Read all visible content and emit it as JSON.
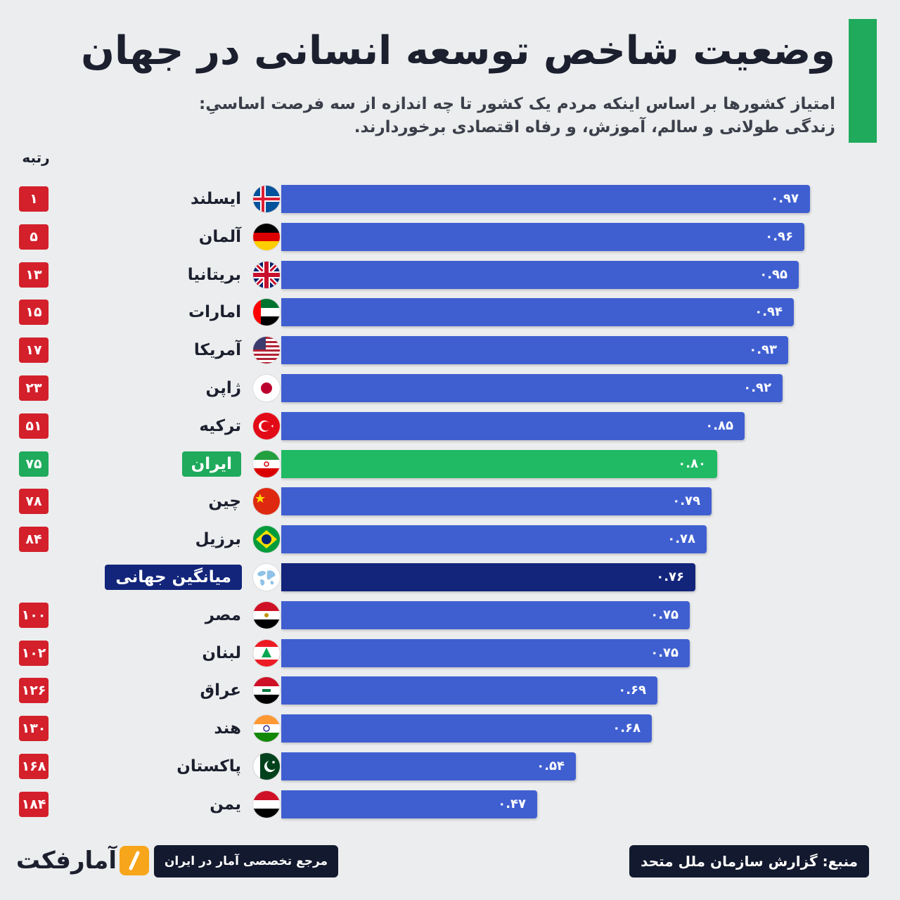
{
  "header": {
    "title": "وضعیت شاخص توسعه انسانی در جهان",
    "subtitle_line1": "امتیاز کشورها بر اساس اینکه مردم یک کشور تا چه اندازه از سه فرصت اساسیِ:",
    "subtitle_line2": "زندگی طولانی و سالم، آموزش، و رفاه اقتصادی برخوردارند."
  },
  "rank_header": "رتبه",
  "colors": {
    "bar": "#3f5fd1",
    "bar_iran": "#1fba63",
    "bar_world": "#13257a",
    "rank_badge": "#d3202b",
    "rank_badge_iran": "#1faa5c",
    "accent": "#1faa5c"
  },
  "chart_data": {
    "type": "bar",
    "orientation": "horizontal",
    "title": "وضعیت شاخص توسعه انسانی در جهان",
    "xlim": [
      0,
      1
    ],
    "categories": [
      "ایسلند",
      "آلمان",
      "بریتانیا",
      "امارات",
      "آمریکا",
      "ژاپن",
      "ترکیه",
      "ایران",
      "چین",
      "برزیل",
      "میانگین جهانی",
      "مصر",
      "لبنان",
      "عراق",
      "هند",
      "پاکستان",
      "یمن"
    ],
    "values": [
      0.97,
      0.96,
      0.95,
      0.94,
      0.93,
      0.92,
      0.85,
      0.8,
      0.79,
      0.78,
      0.76,
      0.75,
      0.75,
      0.69,
      0.68,
      0.54,
      0.47
    ],
    "rows": [
      {
        "country": "ایسلند",
        "flag": "iceland-flag-icon",
        "rank": "۱",
        "label": "۰.۹۷",
        "value": 0.97,
        "style": "normal"
      },
      {
        "country": "آلمان",
        "flag": "germany-flag-icon",
        "rank": "۵",
        "label": "۰.۹۶",
        "value": 0.96,
        "style": "normal"
      },
      {
        "country": "بریتانیا",
        "flag": "uk-flag-icon",
        "rank": "۱۳",
        "label": "۰.۹۵",
        "value": 0.95,
        "style": "normal"
      },
      {
        "country": "امارات",
        "flag": "uae-flag-icon",
        "rank": "۱۵",
        "label": "۰.۹۴",
        "value": 0.94,
        "style": "normal"
      },
      {
        "country": "آمریکا",
        "flag": "usa-flag-icon",
        "rank": "۱۷",
        "label": "۰.۹۳",
        "value": 0.93,
        "style": "normal"
      },
      {
        "country": "ژاپن",
        "flag": "japan-flag-icon",
        "rank": "۲۳",
        "label": "۰.۹۲",
        "value": 0.92,
        "style": "normal"
      },
      {
        "country": "ترکیه",
        "flag": "turkey-flag-icon",
        "rank": "۵۱",
        "label": "۰.۸۵",
        "value": 0.85,
        "style": "normal"
      },
      {
        "country": "ایران",
        "flag": "iran-flag-icon",
        "rank": "۷۵",
        "label": "۰.۸۰",
        "value": 0.8,
        "style": "iran"
      },
      {
        "country": "چین",
        "flag": "china-flag-icon",
        "rank": "۷۸",
        "label": "۰.۷۹",
        "value": 0.79,
        "style": "normal"
      },
      {
        "country": "برزیل",
        "flag": "brazil-flag-icon",
        "rank": "۸۴",
        "label": "۰.۷۸",
        "value": 0.78,
        "style": "normal"
      },
      {
        "country": "میانگین جهانی",
        "flag": "world-map-icon",
        "rank": "",
        "label": "۰.۷۶",
        "value": 0.76,
        "style": "world"
      },
      {
        "country": "مصر",
        "flag": "egypt-flag-icon",
        "rank": "۱۰۰",
        "label": "۰.۷۵",
        "value": 0.75,
        "style": "normal"
      },
      {
        "country": "لبنان",
        "flag": "lebanon-flag-icon",
        "rank": "۱۰۲",
        "label": "۰.۷۵",
        "value": 0.75,
        "style": "normal"
      },
      {
        "country": "عراق",
        "flag": "iraq-flag-icon",
        "rank": "۱۲۶",
        "label": "۰.۶۹",
        "value": 0.69,
        "style": "normal"
      },
      {
        "country": "هند",
        "flag": "india-flag-icon",
        "rank": "۱۳۰",
        "label": "۰.۶۸",
        "value": 0.68,
        "style": "normal"
      },
      {
        "country": "پاکستان",
        "flag": "pakistan-flag-icon",
        "rank": "۱۶۸",
        "label": "۰.۵۴",
        "value": 0.54,
        "style": "normal"
      },
      {
        "country": "یمن",
        "flag": "yemen-flag-icon",
        "rank": "۱۸۴",
        "label": "۰.۴۷",
        "value": 0.47,
        "style": "normal"
      }
    ]
  },
  "footer": {
    "source": "منبع: گزارش سازمان ملل متحد",
    "reference": "مرجع تخصصی آمار در ایران",
    "logo_text": "آمارفکت"
  }
}
